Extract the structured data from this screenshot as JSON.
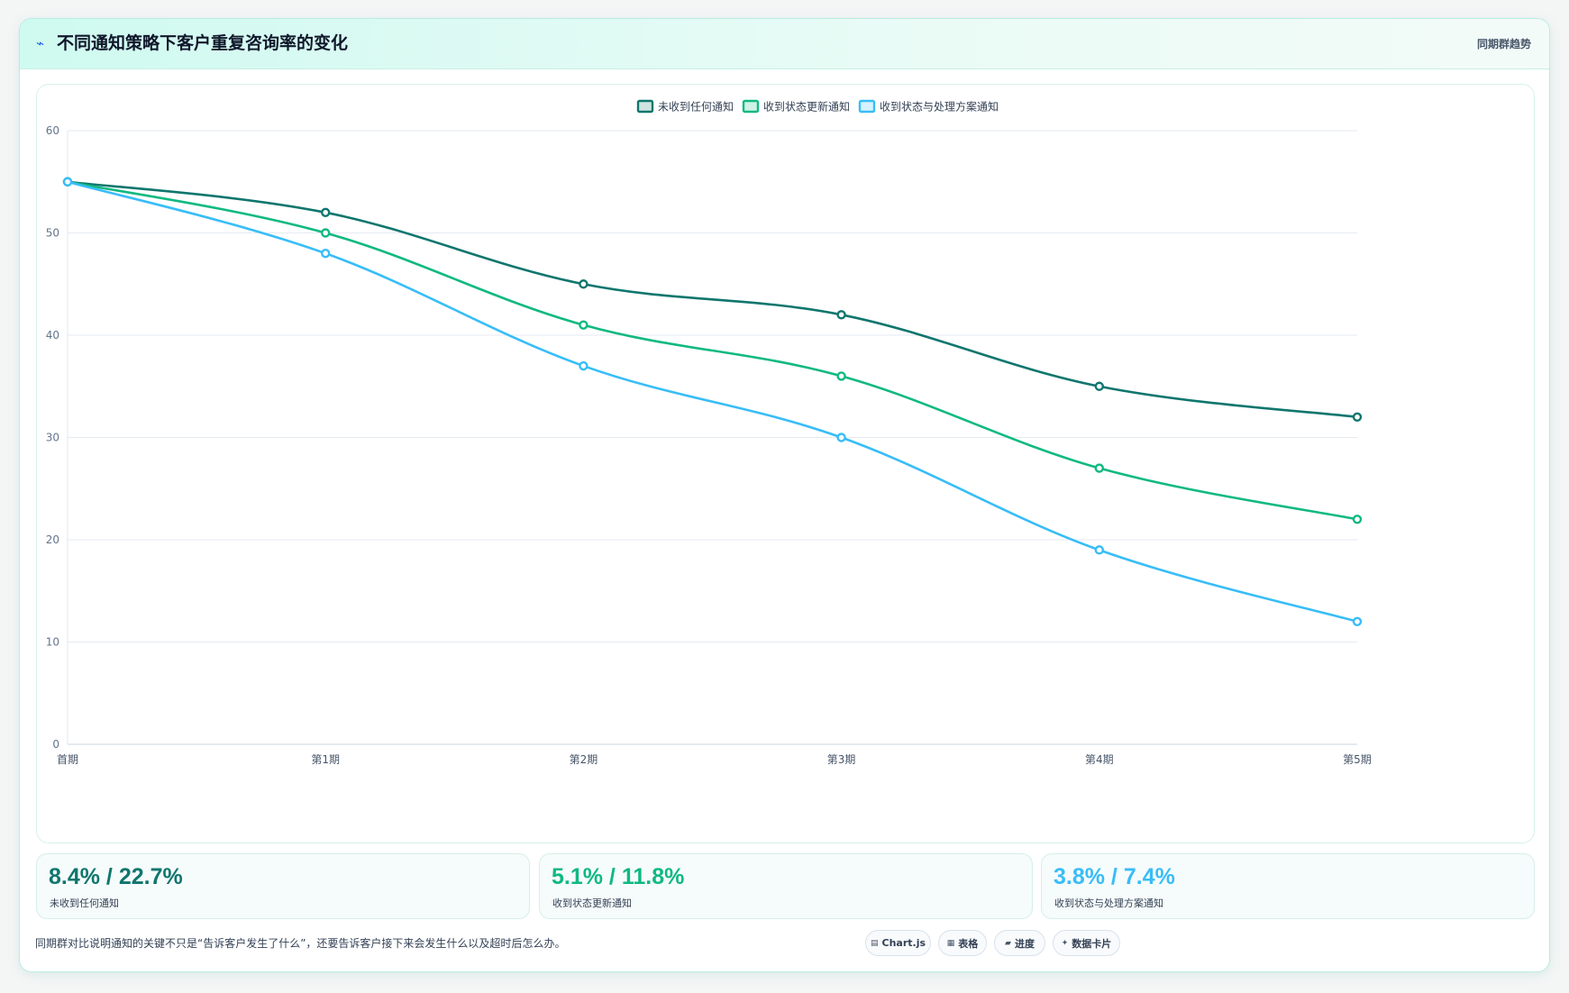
{
  "header": {
    "icon": "trend-icon",
    "title": "不同通知策略下客户重复咨询率的变化",
    "tag": "同期群趋势"
  },
  "chart_data": {
    "type": "line",
    "categories": [
      "首期",
      "第1期",
      "第2期",
      "第3期",
      "第4期",
      "第5期"
    ],
    "series": [
      {
        "name": "未收到任何通知",
        "color": "#0f766e",
        "values": [
          55,
          52,
          45,
          42,
          35,
          32
        ]
      },
      {
        "name": "收到状态更新通知",
        "color": "#10b981",
        "values": [
          55,
          50,
          41,
          36,
          27,
          22
        ]
      },
      {
        "name": "收到状态与处理方案通知",
        "color": "#38bdf8",
        "values": [
          55,
          48,
          37,
          30,
          19,
          12
        ]
      }
    ],
    "ylim": [
      0,
      60
    ],
    "yticks": [
      0,
      10,
      20,
      30,
      40,
      50,
      60
    ],
    "grid": true,
    "legend": "top-center",
    "smooth": true
  },
  "stats": [
    {
      "value": "8.4% / 22.7%",
      "label": "未收到任何通知",
      "color": "#0f766e"
    },
    {
      "value": "5.1% / 11.8%",
      "label": "收到状态更新通知",
      "color": "#10b981"
    },
    {
      "value": "3.8% / 7.4%",
      "label": "收到状态与处理方案通知",
      "color": "#38bdf8"
    }
  ],
  "footnote": "同期群对比说明通知的关键不只是“告诉客户发生了什么”，还要告诉客户接下来会发生什么以及超时后怎么办。",
  "chips": [
    {
      "icon": "chart-icon",
      "glyph": "▤",
      "label": "Chart.js"
    },
    {
      "icon": "table-icon",
      "glyph": "▦",
      "label": "表格"
    },
    {
      "icon": "progress-icon",
      "glyph": "▰",
      "label": "进度"
    },
    {
      "icon": "sparkle-icon",
      "glyph": "✦",
      "label": "数据卡片"
    }
  ]
}
